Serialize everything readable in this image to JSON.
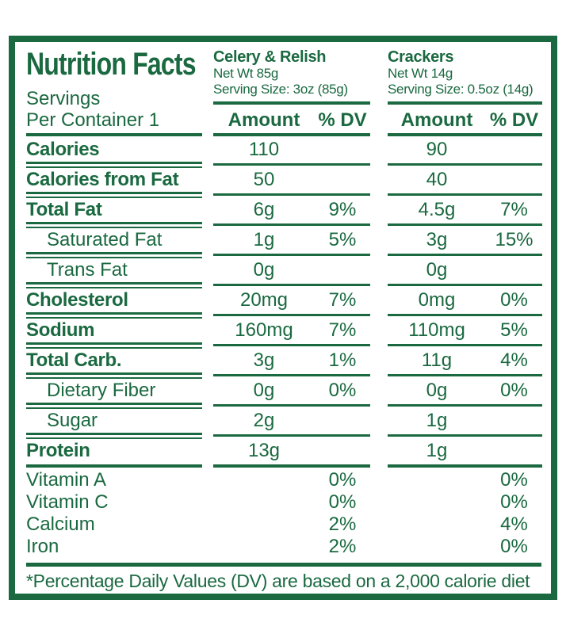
{
  "label": {
    "title": "Nutrition Facts",
    "servings_line1": "Servings",
    "servings_line2": "Per Container 1",
    "columns_header": {
      "amount": "Amount",
      "dv": "% DV"
    },
    "products": [
      {
        "name": "Celery & Relish",
        "net_wt": "Net Wt 85g",
        "serving_size": "Serving Size: 3oz (85g)"
      },
      {
        "name": "Crackers",
        "net_wt": "Net Wt 14g",
        "serving_size": "Serving Size: 0.5oz (14g)"
      }
    ],
    "rows": [
      {
        "label": "Calories",
        "a1": "110",
        "d1": "",
        "a2": "90",
        "d2": ""
      },
      {
        "label": "Calories from Fat",
        "a1": "50",
        "d1": "",
        "a2": "40",
        "d2": ""
      },
      {
        "label": "Total Fat",
        "a1": "6g",
        "d1": "9%",
        "a2": "4.5g",
        "d2": "7%"
      },
      {
        "label": "Saturated Fat",
        "a1": "1g",
        "d1": "5%",
        "a2": "3g",
        "d2": "15%"
      },
      {
        "label": "Trans Fat",
        "a1": "0g",
        "d1": "",
        "a2": "0g",
        "d2": ""
      },
      {
        "label": "Cholesterol",
        "a1": "20mg",
        "d1": "7%",
        "a2": "0mg",
        "d2": "0%"
      },
      {
        "label": "Sodium",
        "a1": "160mg",
        "d1": "7%",
        "a2": "110mg",
        "d2": "5%"
      },
      {
        "label": "Total Carb.",
        "a1": "3g",
        "d1": "1%",
        "a2": "11g",
        "d2": "4%"
      },
      {
        "label": "Dietary Fiber",
        "a1": "0g",
        "d1": "0%",
        "a2": "0g",
        "d2": "0%"
      },
      {
        "label": "Sugar",
        "a1": "2g",
        "d1": "",
        "a2": "1g",
        "d2": ""
      },
      {
        "label": "Protein",
        "a1": "13g",
        "d1": "",
        "a2": "1g",
        "d2": ""
      }
    ],
    "vitamins": [
      {
        "label": "Vitamin A",
        "d1": "0%",
        "d2": "0%"
      },
      {
        "label": "Vitamin C",
        "d1": "0%",
        "d2": "0%"
      },
      {
        "label": "Calcium",
        "d1": "2%",
        "d2": "4%"
      },
      {
        "label": "Iron",
        "d1": "2%",
        "d2": "0%"
      }
    ],
    "footnote": "*Percentage Daily Values (DV) are based on a 2,000 calorie diet",
    "colors": {
      "green": "#1a6940",
      "background": "#ffffff"
    }
  }
}
